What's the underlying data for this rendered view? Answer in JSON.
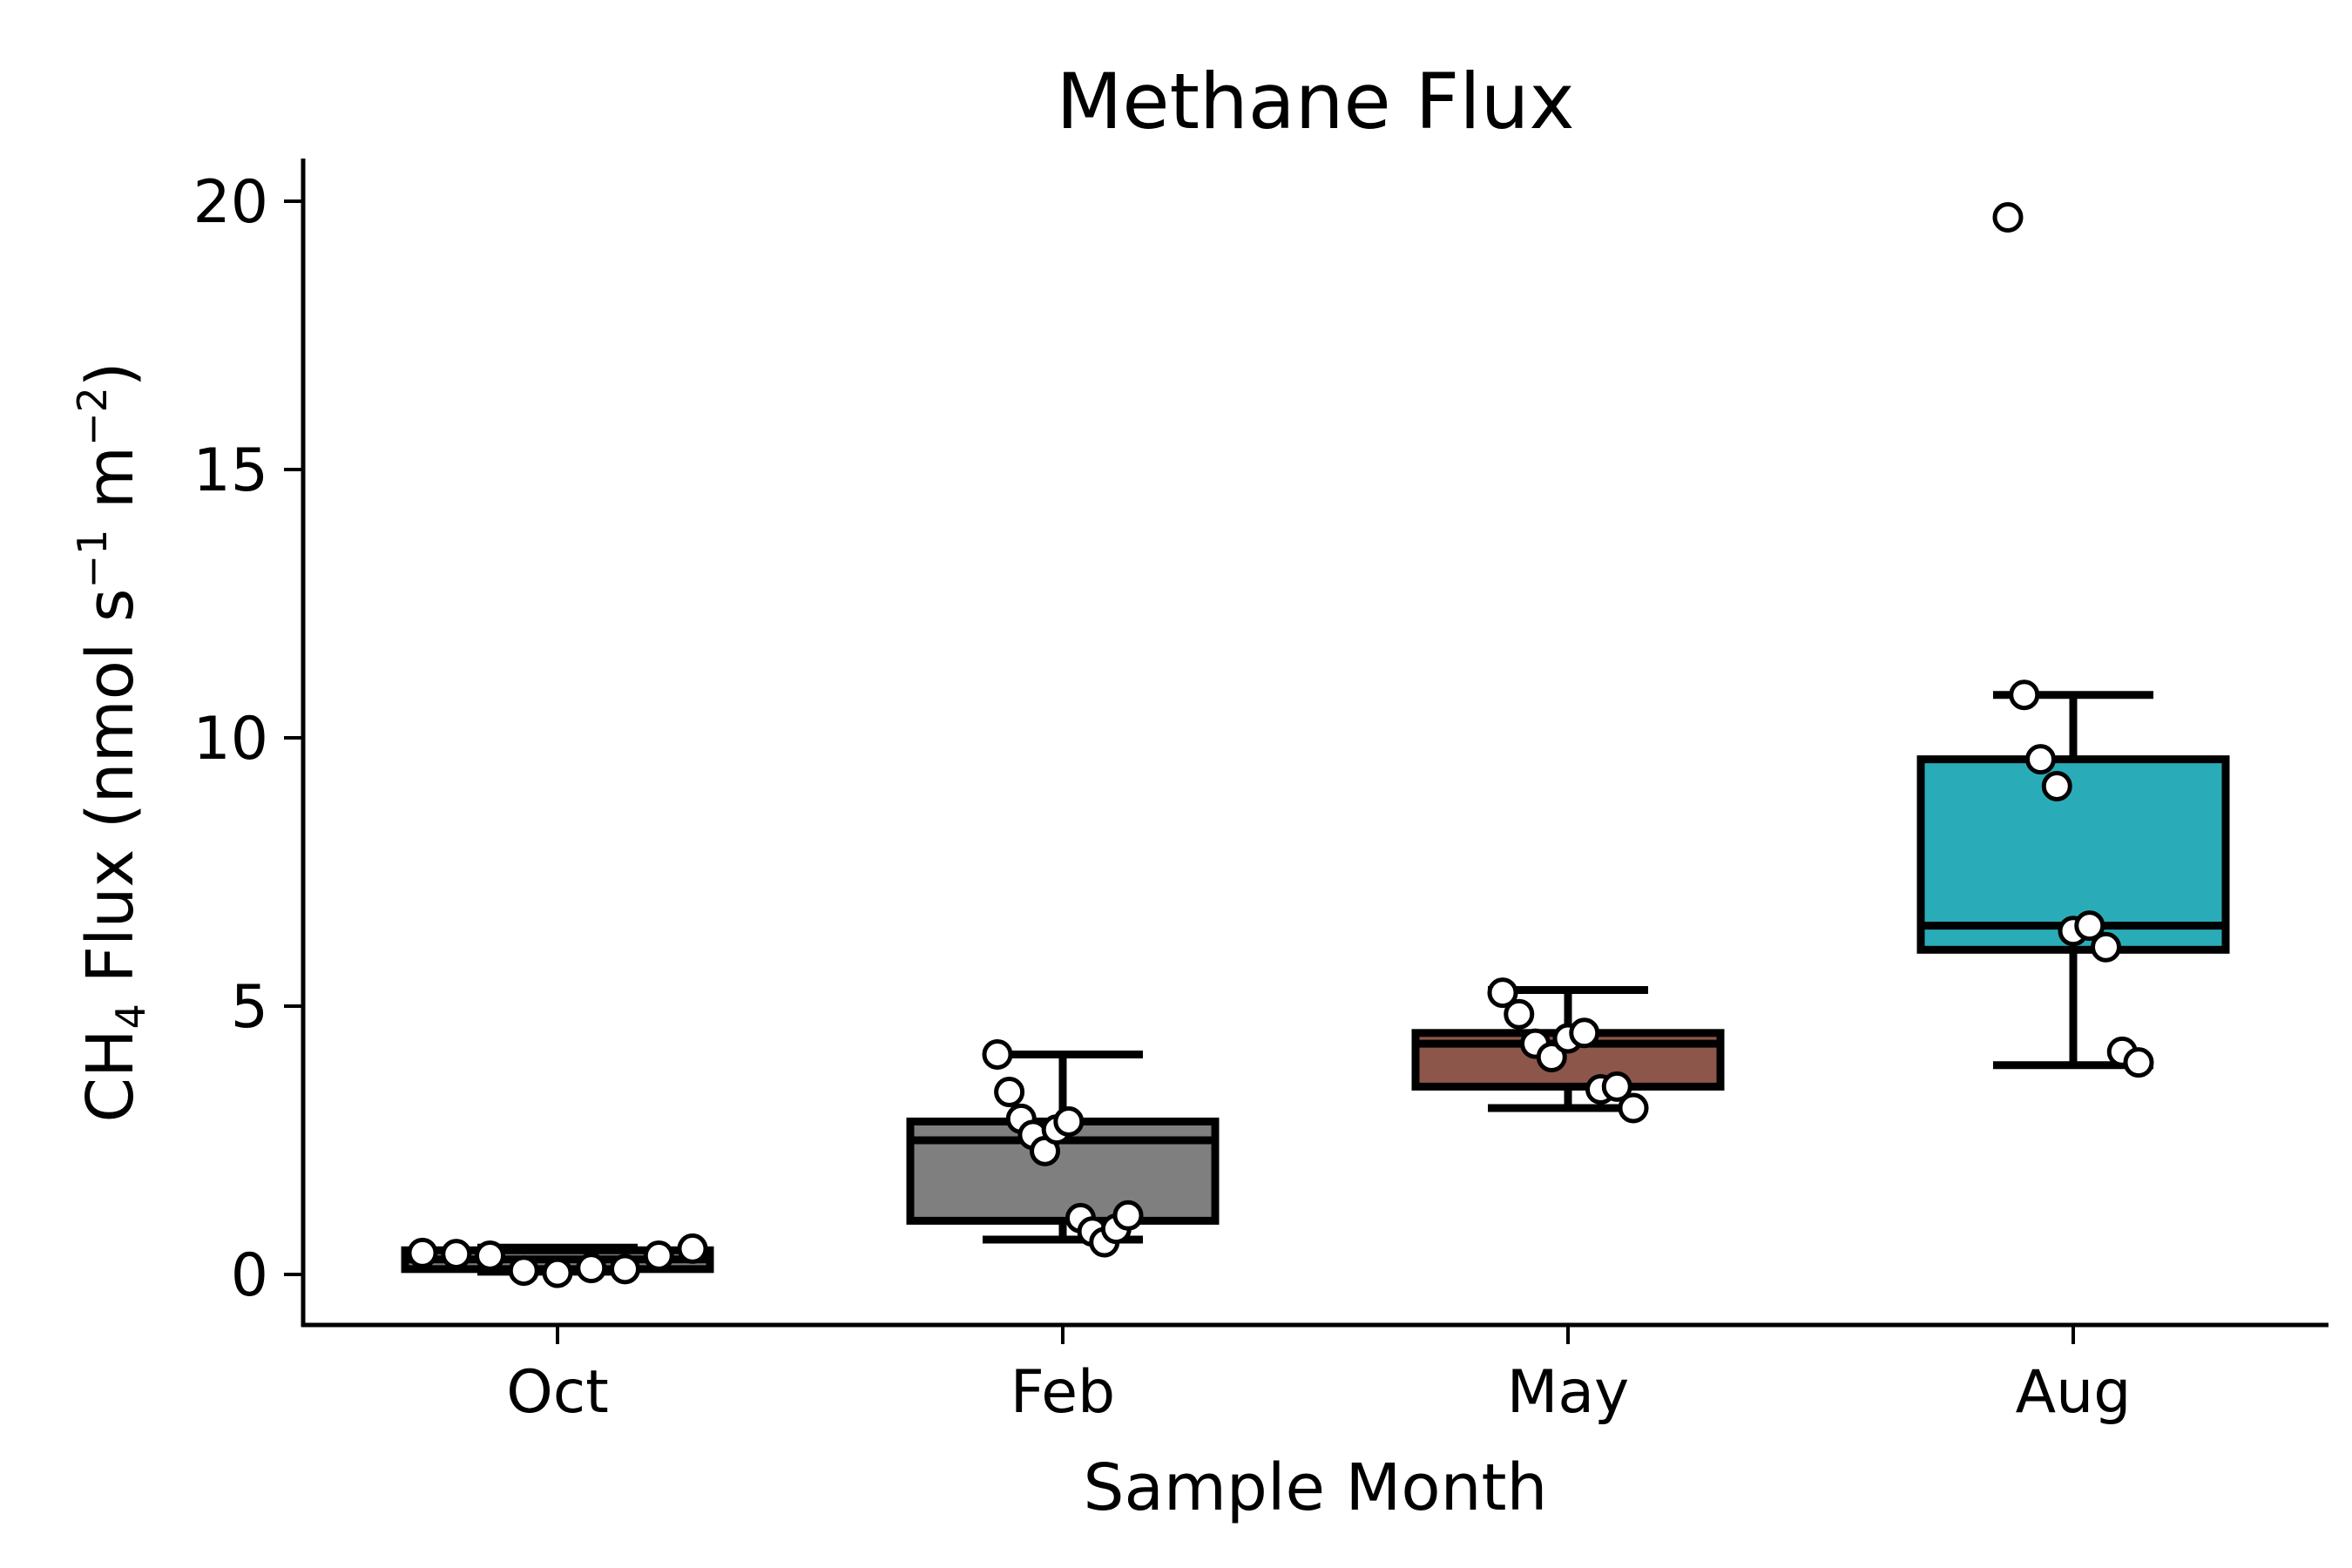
{
  "chart_data": {
    "type": "box",
    "title": "Methane Flux",
    "xlabel": "Sample Month",
    "ylabel": {
      "prefix": "CH",
      "subscript": "4",
      "middle": " Flux (nmol s",
      "sup1": "−1",
      "mid2": " m",
      "sup2": "−2",
      "suffix": ")"
    },
    "ylim": [
      -0.9,
      20.8
    ],
    "yticks": [
      0,
      5,
      10,
      15,
      20
    ],
    "categories": [
      "Oct",
      "Feb",
      "May",
      "Aug"
    ],
    "grid": false,
    "colors": {
      "Oct": "#7f7f7f",
      "Feb": "#7f7f7f",
      "May": "#8c564b",
      "Aug": "#2aacb8"
    },
    "boxes": [
      {
        "category": "Oct",
        "whisker_low": 0.05,
        "q1": 0.1,
        "median": 0.28,
        "q3": 0.45,
        "whisker_high": 0.5,
        "outliers": [],
        "points": [
          0.4,
          0.38,
          0.35,
          0.07,
          0.03,
          0.12,
          0.1,
          0.35,
          0.48
        ]
      },
      {
        "category": "Feb",
        "whisker_low": 0.65,
        "q1": 1.0,
        "median": 2.5,
        "q3": 2.85,
        "whisker_high": 4.1,
        "outliers": [],
        "points": [
          4.1,
          3.4,
          2.9,
          2.6,
          2.3,
          2.7,
          2.85,
          1.05,
          0.8,
          0.6,
          0.85,
          1.1
        ]
      },
      {
        "category": "May",
        "whisker_low": 3.1,
        "q1": 3.5,
        "median": 4.3,
        "q3": 4.5,
        "whisker_high": 5.3,
        "outliers": [],
        "points": [
          5.25,
          4.85,
          4.3,
          4.05,
          4.4,
          4.5,
          3.45,
          3.5,
          3.1
        ]
      },
      {
        "category": "Aug",
        "whisker_low": 3.9,
        "q1": 6.05,
        "median": 6.5,
        "q3": 9.6,
        "whisker_high": 10.8,
        "outliers": [
          19.7
        ],
        "points": [
          19.7,
          10.8,
          9.6,
          9.1,
          6.4,
          6.5,
          6.1,
          4.15,
          3.95
        ]
      }
    ]
  }
}
